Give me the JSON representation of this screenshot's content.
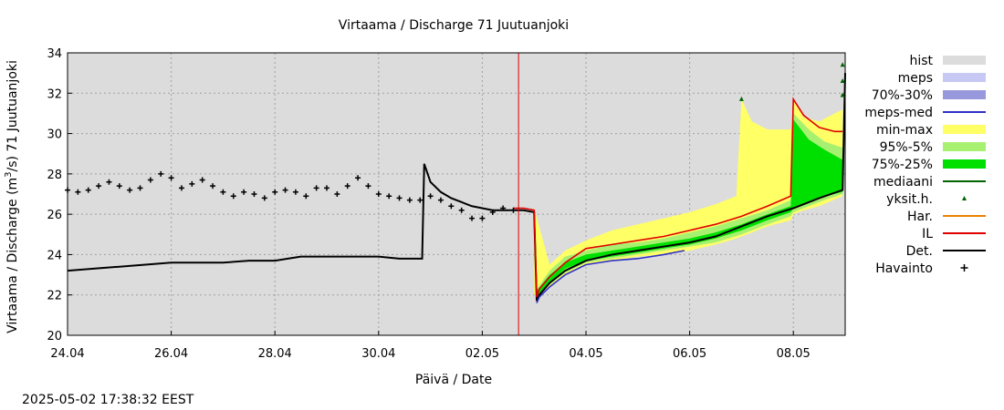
{
  "chart_data": {
    "type": "line",
    "title": "Virtaama / Discharge  71 Juutuanjoki",
    "ylabel_prefix": "Virtaama / Discharge (m",
    "ylabel_sup": "3",
    "ylabel_suffix": "/s)  71  Juutuanjoki",
    "xlabel": "Päivä / Date",
    "timestamp": "2025-05-02 17:38:32 EEST",
    "x_unit": "days since 24.04 (x-axis runs 24.04 to 09.05)",
    "xlim": [
      0,
      15
    ],
    "ylim": [
      20,
      34
    ],
    "yticks": [
      20,
      22,
      24,
      26,
      28,
      30,
      32,
      34
    ],
    "xticks": [
      {
        "x": 0,
        "label": "24.04"
      },
      {
        "x": 2,
        "label": "26.04"
      },
      {
        "x": 4,
        "label": "28.04"
      },
      {
        "x": 6,
        "label": "30.04"
      },
      {
        "x": 8,
        "label": "02.05"
      },
      {
        "x": 10,
        "label": "04.05"
      },
      {
        "x": 12,
        "label": "06.05"
      },
      {
        "x": 14,
        "label": "08.05"
      }
    ],
    "grid": true,
    "background": "#dcdcdc",
    "forecast_start_x": 8.7,
    "legend_position": "right",
    "legend": [
      {
        "label": "hist",
        "kind": "box",
        "color": "#dcdcdc"
      },
      {
        "label": "meps",
        "kind": "box",
        "color": "#c8c8f5"
      },
      {
        "label": "70%-30%",
        "kind": "box",
        "color": "#9898dc"
      },
      {
        "label": "meps-med",
        "kind": "line",
        "color": "#3030c8"
      },
      {
        "label": "min-max",
        "kind": "box",
        "color": "#ffff66"
      },
      {
        "label": "95%-5%",
        "kind": "box",
        "color": "#a8f070"
      },
      {
        "label": "75%-25%",
        "kind": "box",
        "color": "#00e000"
      },
      {
        "label": "mediaani",
        "kind": "line",
        "color": "#006400"
      },
      {
        "label": "yksit.h.",
        "kind": "tri",
        "color": "#006400"
      },
      {
        "label": "Har.",
        "kind": "line",
        "color": "#e88000"
      },
      {
        "label": "IL",
        "kind": "line",
        "color": "#e00000"
      },
      {
        "label": "Det.",
        "kind": "line",
        "color": "#000000"
      },
      {
        "label": "Havainto",
        "kind": "plus",
        "color": "#000000"
      }
    ],
    "series": [
      {
        "name": "Havainto",
        "color": "#000000",
        "x": [
          0.0,
          0.2,
          0.4,
          0.6,
          0.8,
          1.0,
          1.2,
          1.4,
          1.6,
          1.8,
          2.0,
          2.2,
          2.4,
          2.6,
          2.8,
          3.0,
          3.2,
          3.4,
          3.6,
          3.8,
          4.0,
          4.2,
          4.4,
          4.6,
          4.8,
          5.0,
          5.2,
          5.4,
          5.6,
          5.8,
          6.0,
          6.2,
          6.4,
          6.6,
          6.8,
          7.0,
          7.2,
          7.4,
          7.6,
          7.8,
          8.0,
          8.2,
          8.4,
          8.6
        ],
        "y": [
          27.2,
          27.1,
          27.2,
          27.4,
          27.6,
          27.4,
          27.2,
          27.3,
          27.7,
          28.0,
          27.8,
          27.3,
          27.5,
          27.7,
          27.4,
          27.1,
          26.9,
          27.1,
          27.0,
          26.8,
          27.1,
          27.2,
          27.1,
          26.9,
          27.3,
          27.3,
          27.0,
          27.4,
          27.8,
          27.4,
          27.0,
          26.9,
          26.8,
          26.7,
          26.7,
          26.9,
          26.7,
          26.4,
          26.2,
          25.8,
          25.8,
          26.1,
          26.3,
          26.2
        ]
      },
      {
        "name": "Det.",
        "color": "#000000",
        "x": [
          0,
          0.5,
          1.0,
          1.5,
          2.0,
          2.5,
          3.0,
          3.5,
          4.0,
          4.5,
          5.0,
          5.5,
          6.0,
          6.4,
          6.84,
          6.88,
          7.0,
          7.2,
          7.4,
          7.6,
          7.8,
          8.0,
          8.2,
          8.4,
          8.6,
          8.8,
          9.0,
          9.05,
          9.1,
          9.3,
          9.6,
          10.0,
          10.5,
          11.0,
          11.5,
          12.0,
          12.5,
          13.0,
          13.5,
          14.0,
          14.5,
          14.95,
          15.0
        ],
        "y": [
          23.2,
          23.3,
          23.4,
          23.5,
          23.6,
          23.6,
          23.6,
          23.7,
          23.7,
          23.9,
          23.9,
          23.9,
          23.9,
          23.8,
          23.8,
          28.5,
          27.6,
          27.1,
          26.8,
          26.6,
          26.4,
          26.3,
          26.2,
          26.2,
          26.2,
          26.2,
          26.1,
          21.7,
          22.0,
          22.6,
          23.2,
          23.7,
          24.0,
          24.2,
          24.4,
          24.6,
          24.9,
          25.4,
          25.9,
          26.3,
          26.8,
          27.2,
          33.0
        ]
      },
      {
        "name": "IL",
        "color": "#e00000",
        "x": [
          8.6,
          8.8,
          9.0,
          9.05,
          9.1,
          9.3,
          9.6,
          10.0,
          10.5,
          11.0,
          11.5,
          12.0,
          12.5,
          13.0,
          13.5,
          13.95,
          14.0,
          14.2,
          14.5,
          14.8,
          14.95
        ],
        "y": [
          26.3,
          26.3,
          26.2,
          21.9,
          22.3,
          22.9,
          23.6,
          24.3,
          24.5,
          24.7,
          24.9,
          25.2,
          25.5,
          25.9,
          26.4,
          26.9,
          31.7,
          30.9,
          30.3,
          30.1,
          30.1
        ]
      },
      {
        "name": "meps-med",
        "color": "#3030c8",
        "x": [
          9.05,
          9.1,
          9.3,
          9.6,
          10.0,
          10.5,
          11.0,
          11.5,
          11.9
        ],
        "y": [
          21.6,
          21.9,
          22.4,
          23.0,
          23.5,
          23.7,
          23.8,
          24.0,
          24.2
        ]
      },
      {
        "name": "yksit.h.",
        "color": "#006400",
        "x": [
          13.0,
          14.95,
          14.95,
          14.95
        ],
        "y": [
          31.7,
          32.6,
          33.4,
          31.9
        ]
      }
    ],
    "bands": [
      {
        "name": "min-max",
        "color": "#ffff66",
        "x": [
          9.0,
          9.3,
          9.6,
          10.0,
          10.5,
          11.0,
          11.5,
          12.0,
          12.5,
          12.9,
          13.0,
          13.2,
          13.5,
          13.95,
          14.0,
          14.2,
          14.5,
          14.95
        ],
        "upper": [
          26.3,
          23.5,
          24.2,
          24.7,
          25.2,
          25.5,
          25.8,
          26.1,
          26.5,
          26.9,
          31.7,
          30.6,
          30.2,
          30.2,
          31.7,
          30.8,
          30.6,
          31.2
        ],
        "lower": [
          22.0,
          22.4,
          23.0,
          23.5,
          23.7,
          23.9,
          24.0,
          24.2,
          24.5,
          24.8,
          24.9,
          25.1,
          25.4,
          25.7,
          26.0,
          26.2,
          26.4,
          26.9
        ]
      },
      {
        "name": "95%-5%",
        "color": "#a8f070",
        "x": [
          9.05,
          9.3,
          9.6,
          10.0,
          10.5,
          11.0,
          11.5,
          12.0,
          12.5,
          13.0,
          13.5,
          13.95,
          14.0,
          14.3,
          14.6,
          14.95
        ],
        "upper": [
          22.3,
          23.2,
          23.9,
          24.2,
          24.5,
          24.6,
          24.8,
          25.1,
          25.4,
          25.8,
          26.2,
          26.7,
          31.0,
          30.2,
          29.6,
          29.3
        ],
        "lower": [
          21.9,
          22.5,
          23.1,
          23.6,
          23.8,
          24.0,
          24.2,
          24.4,
          24.6,
          25.0,
          25.5,
          25.9,
          26.1,
          26.4,
          26.7,
          27.0
        ]
      },
      {
        "name": "75%-25%",
        "color": "#00e000",
        "x": [
          9.05,
          9.3,
          9.6,
          10.0,
          10.5,
          11.0,
          11.5,
          12.0,
          12.5,
          13.0,
          13.5,
          13.95,
          14.0,
          14.3,
          14.6,
          14.95
        ],
        "upper": [
          22.2,
          23.0,
          23.6,
          24.0,
          24.2,
          24.4,
          24.6,
          24.8,
          25.1,
          25.5,
          26.0,
          26.4,
          30.7,
          29.7,
          29.2,
          28.7
        ],
        "lower": [
          21.9,
          22.6,
          23.3,
          23.7,
          23.9,
          24.1,
          24.3,
          24.5,
          24.8,
          25.2,
          25.7,
          26.1,
          26.3,
          26.6,
          26.9,
          27.1
        ]
      }
    ]
  }
}
